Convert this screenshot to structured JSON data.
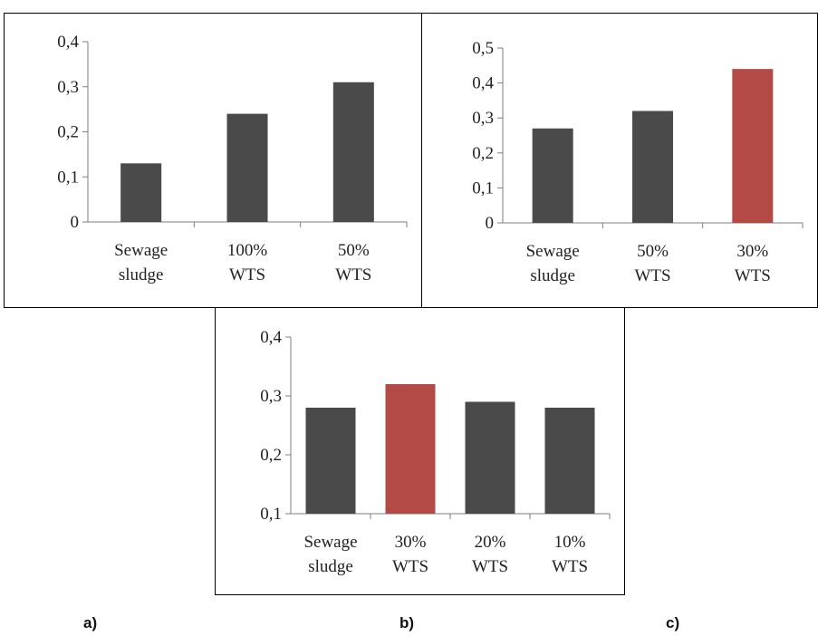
{
  "chart_data": [
    {
      "type": "bar",
      "categories": [
        [
          "Sewage",
          "sludge"
        ],
        [
          "100%",
          "WTS"
        ],
        [
          "50%",
          "WTS"
        ]
      ],
      "values": [
        0.13,
        0.24,
        0.31
      ],
      "colors": [
        "#4a4a4a",
        "#4a4a4a",
        "#4a4a4a"
      ],
      "ylim": [
        0,
        0.4
      ],
      "yticks": [
        "0",
        "0,1",
        "0,2",
        "0,3",
        "0,4"
      ],
      "title": "",
      "xlabel": "",
      "ylabel": "",
      "grid": false,
      "legend": "none"
    },
    {
      "type": "bar",
      "categories": [
        [
          "Sewage",
          "sludge"
        ],
        [
          "50%",
          "WTS"
        ],
        [
          "30%",
          "WTS"
        ]
      ],
      "values": [
        0.27,
        0.32,
        0.44
      ],
      "colors": [
        "#4a4a4a",
        "#4a4a4a",
        "#b34a46"
      ],
      "ylim": [
        0,
        0.5
      ],
      "yticks": [
        "0",
        "0,1",
        "0,2",
        "0,3",
        "0,4",
        "0,5"
      ],
      "title": "",
      "xlabel": "",
      "ylabel": "",
      "grid": false,
      "legend": "none"
    },
    {
      "type": "bar",
      "categories": [
        [
          "Sewage",
          "sludge"
        ],
        [
          "30%",
          "WTS"
        ],
        [
          "20%",
          "WTS"
        ],
        [
          "10%",
          "WTS"
        ]
      ],
      "values": [
        0.28,
        0.32,
        0.29,
        0.28
      ],
      "colors": [
        "#4a4a4a",
        "#b34a46",
        "#4a4a4a",
        "#4a4a4a"
      ],
      "ylim": [
        0.1,
        0.4
      ],
      "yticks": [
        "0,1",
        "0,2",
        "0,3",
        "0,4"
      ],
      "title": "",
      "xlabel": "",
      "ylabel": "",
      "grid": false,
      "legend": "none"
    }
  ],
  "captions": {
    "a": "a)",
    "b": "b)",
    "c": "c)"
  }
}
